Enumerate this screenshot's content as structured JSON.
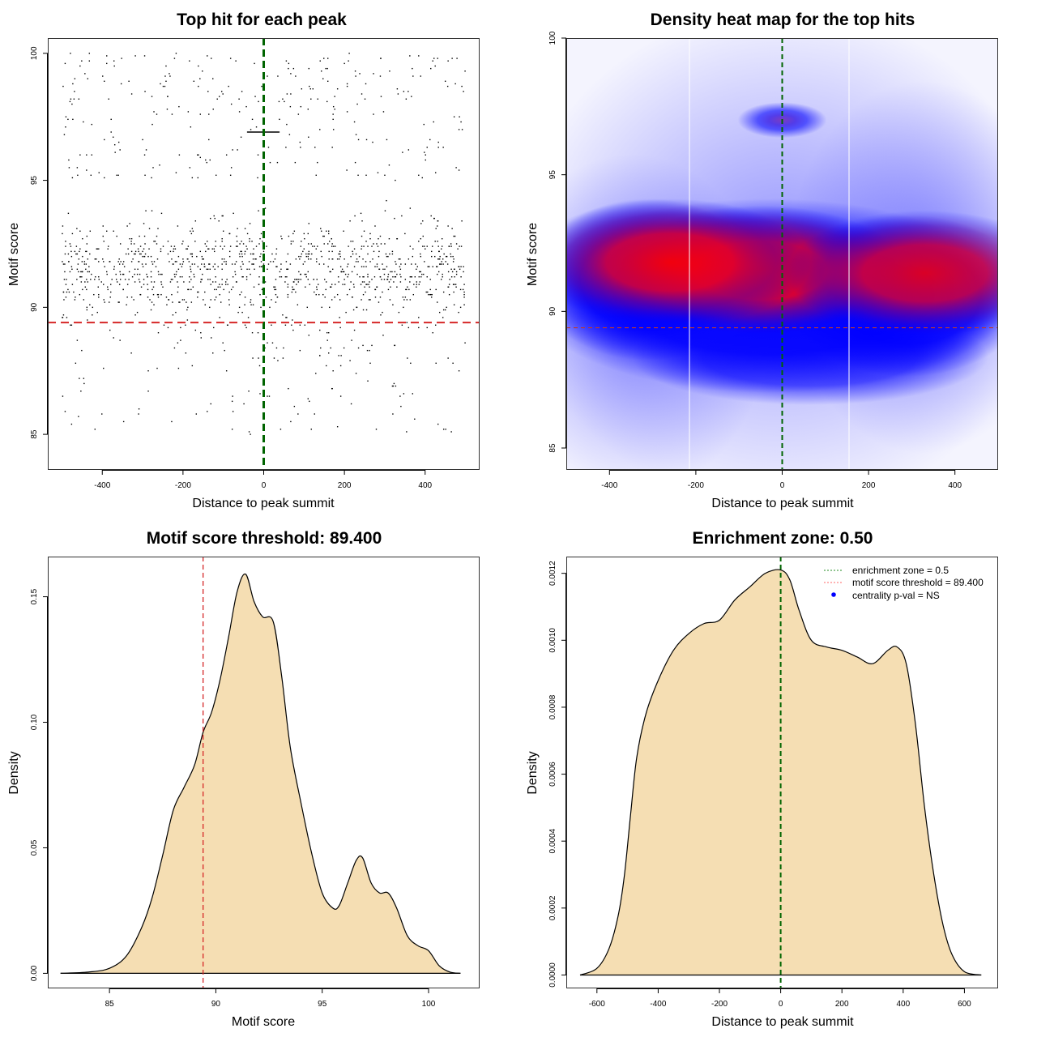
{
  "chart_data": [
    {
      "type": "scatter",
      "title": "Top hit for each peak",
      "xlabel": "Distance to peak summit",
      "ylabel": "Motif score",
      "xlim": [
        -535,
        535
      ],
      "ylim": [
        83.6,
        100.6
      ],
      "xticks": [
        -400,
        -200,
        0,
        200,
        400
      ],
      "yticks": [
        85,
        90,
        95,
        100
      ],
      "point_count_approx": 1500,
      "point_distribution": {
        "x_range": [
          -500,
          500
        ],
        "y_mode": 91.5,
        "y_range": [
          84.2,
          100
        ],
        "note": "individual points not legible; dense band around 90-94, sparse above 95, cluster at y~96.9 near x=0"
      },
      "vlines": [
        {
          "x": 0,
          "color": "#006400",
          "style": "dashed"
        }
      ],
      "hlines": [
        {
          "y": 89.4,
          "color": "#d62728",
          "style": "dashed"
        }
      ]
    },
    {
      "type": "heatmap",
      "title": "Density heat map for the top hits",
      "xlabel": "Distance to peak summit",
      "ylabel": "Motif score",
      "xlim": [
        -500,
        500
      ],
      "ylim": [
        84.2,
        100
      ],
      "xticks": [
        -400,
        -200,
        0,
        200,
        400
      ],
      "yticks": [
        85,
        90,
        95,
        100
      ],
      "colormap": [
        "#ffffff",
        "#0000ff",
        "#ff0000"
      ],
      "hotspots": [
        {
          "x": -50,
          "y": 91.5,
          "intensity": 1.0
        },
        {
          "x": -260,
          "y": 91.8,
          "intensity": 0.85
        },
        {
          "x": 330,
          "y": 91.4,
          "intensity": 0.75
        },
        {
          "x": 0,
          "y": 97.0,
          "intensity": 0.5
        }
      ],
      "zone_lines": [
        -215,
        155
      ],
      "vlines": [
        {
          "x": 0,
          "color": "#006400",
          "style": "dashed"
        }
      ],
      "hlines": [
        {
          "y": 89.4,
          "color": "#c0392b",
          "style": "dashed"
        }
      ]
    },
    {
      "type": "area",
      "title": "Motif score threshold: 89.400",
      "xlabel": "Motif score",
      "ylabel": "Density",
      "xlim": [
        82.1,
        102.4
      ],
      "ylim": [
        -0.006,
        0.166
      ],
      "xticks": [
        85,
        90,
        95,
        100
      ],
      "yticks": [
        0.0,
        0.05,
        0.1,
        0.15
      ],
      "ytick_labels": [
        "0.00",
        "0.05",
        "0.10",
        "0.15"
      ],
      "x": [
        82.7,
        84.0,
        85.0,
        85.8,
        86.5,
        87.0,
        87.5,
        88.0,
        88.5,
        89.0,
        89.4,
        89.8,
        90.2,
        90.6,
        91.0,
        91.4,
        91.8,
        92.2,
        92.7,
        93.1,
        93.5,
        94.0,
        94.5,
        95.0,
        95.5,
        95.8,
        96.2,
        96.6,
        96.9,
        97.3,
        97.7,
        98.1,
        98.5,
        99.0,
        99.5,
        100.0,
        100.5,
        101.0,
        101.5
      ],
      "y": [
        0.0,
        0.0005,
        0.002,
        0.007,
        0.018,
        0.03,
        0.047,
        0.065,
        0.074,
        0.083,
        0.096,
        0.104,
        0.117,
        0.134,
        0.152,
        0.159,
        0.148,
        0.142,
        0.14,
        0.118,
        0.09,
        0.068,
        0.048,
        0.032,
        0.026,
        0.027,
        0.036,
        0.045,
        0.046,
        0.036,
        0.032,
        0.032,
        0.026,
        0.015,
        0.011,
        0.009,
        0.003,
        0.0005,
        0.0
      ],
      "fill": "#f5deb3",
      "vlines": [
        {
          "x": 89.4,
          "color": "#d62728",
          "style": "dashed"
        }
      ]
    },
    {
      "type": "area",
      "title": "Enrichment zone: 0.50",
      "xlabel": "Distance to peak summit",
      "ylabel": "Density",
      "xlim": [
        -700,
        710
      ],
      "ylim": [
        -4e-05,
        0.00125
      ],
      "xticks": [
        -600,
        -400,
        -200,
        0,
        200,
        400,
        600
      ],
      "yticks": [
        0.0,
        0.0002,
        0.0004,
        0.0006,
        0.0008,
        0.001,
        0.0012
      ],
      "ytick_labels": [
        "0.0000",
        "0.0002",
        "0.0004",
        "0.0006",
        "0.0008",
        "0.0010",
        "0.0012"
      ],
      "x": [
        -655,
        -600,
        -560,
        -530,
        -510,
        -490,
        -470,
        -440,
        -400,
        -350,
        -300,
        -250,
        -200,
        -150,
        -100,
        -50,
        0,
        30,
        60,
        100,
        150,
        200,
        250,
        300,
        350,
        380,
        410,
        440,
        470,
        500,
        530,
        560,
        600,
        655
      ],
      "y": [
        0.0,
        2e-05,
        8e-05,
        0.00018,
        0.0003,
        0.00048,
        0.00065,
        0.00078,
        0.00088,
        0.00097,
        0.00102,
        0.00105,
        0.00106,
        0.00112,
        0.00116,
        0.0012,
        0.00121,
        0.00118,
        0.00109,
        0.001,
        0.00098,
        0.00097,
        0.00095,
        0.00093,
        0.00097,
        0.00098,
        0.00093,
        0.00075,
        0.0005,
        0.0003,
        0.00015,
        6e-05,
        1e-05,
        0.0
      ],
      "fill": "#f5deb3",
      "vlines": [
        {
          "x": 0,
          "color": "#006400",
          "style": "dashed"
        }
      ],
      "legend": {
        "position": "top-right",
        "entries": [
          {
            "label": "enrichment zone = 0.5",
            "symbol": "dotted-line",
            "color": "#228b22"
          },
          {
            "label": "motif score threshold = 89.400",
            "symbol": "dotted-line",
            "color": "#ff6666"
          },
          {
            "label": "centrality p-val = NS",
            "symbol": "dot",
            "color": "#0000ff"
          }
        ]
      }
    }
  ]
}
